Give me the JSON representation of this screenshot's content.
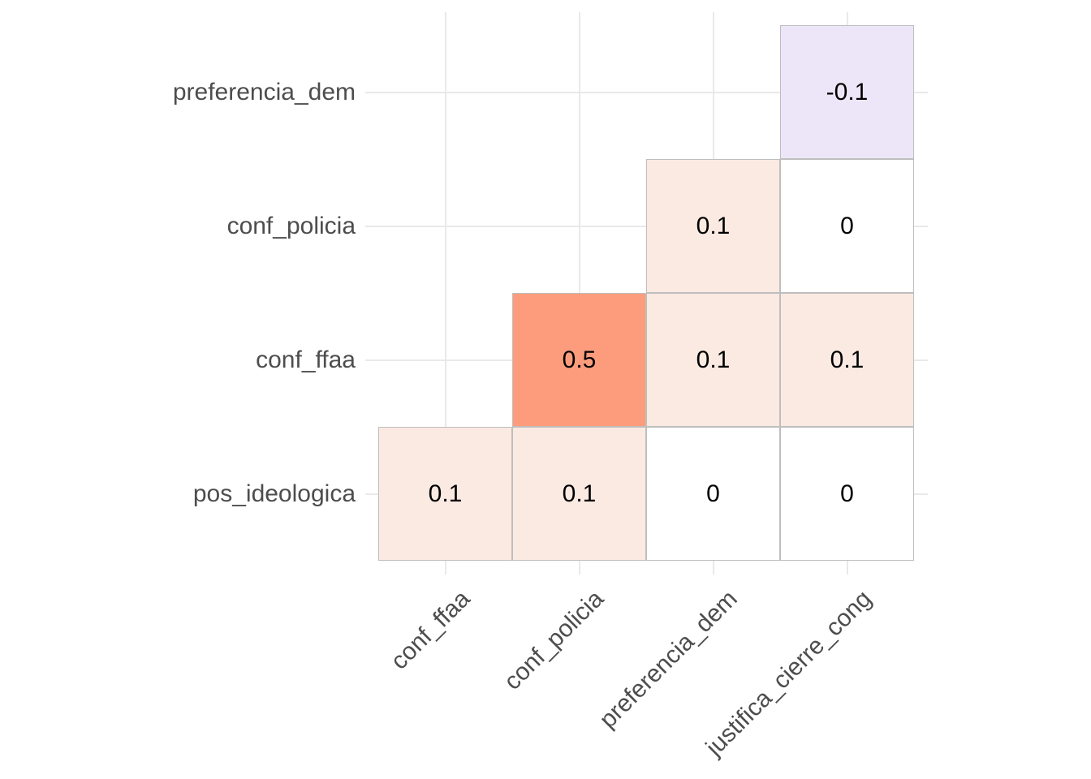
{
  "figure": {
    "background": "#ffffff",
    "axis_text_color": "#4d4d4d",
    "value_text_color": "#000000",
    "cell_border_color": "#bebebe",
    "gridline_color": "#e9e9e9"
  },
  "chart_data": {
    "type": "heatmap",
    "title": "",
    "description": "Triangular correlation matrix with correlation coefficients printed in each tile",
    "x_categories": [
      "conf_ffaa",
      "conf_policia",
      "preferencia_dem",
      "justifica_cierre_cong"
    ],
    "y_categories_top_to_bottom": [
      "preferencia_dem",
      "conf_policia",
      "conf_ffaa",
      "pos_ideologica"
    ],
    "x_tick_rotation_deg": 45,
    "grid": true,
    "legend": "none",
    "color_scale": {
      "negative_low": "#ede6f8",
      "zero": "#ffffff",
      "positive_low": "#fbeae2",
      "positive_mid": "#fc9c7d"
    },
    "cells": [
      {
        "row": "preferencia_dem",
        "col": "justifica_cierre_cong",
        "value": -0.1,
        "label": "-0.1",
        "color": "#ede6f8"
      },
      {
        "row": "conf_policia",
        "col": "preferencia_dem",
        "value": 0.1,
        "label": "0.1",
        "color": "#fbeae2"
      },
      {
        "row": "conf_policia",
        "col": "justifica_cierre_cong",
        "value": 0,
        "label": "0",
        "color": "#ffffff"
      },
      {
        "row": "conf_ffaa",
        "col": "conf_policia",
        "value": 0.5,
        "label": "0.5",
        "color": "#fc9c7d"
      },
      {
        "row": "conf_ffaa",
        "col": "preferencia_dem",
        "value": 0.1,
        "label": "0.1",
        "color": "#fbeae2"
      },
      {
        "row": "conf_ffaa",
        "col": "justifica_cierre_cong",
        "value": 0.1,
        "label": "0.1",
        "color": "#fbeae2"
      },
      {
        "row": "pos_ideologica",
        "col": "conf_ffaa",
        "value": 0.1,
        "label": "0.1",
        "color": "#fbeae2"
      },
      {
        "row": "pos_ideologica",
        "col": "conf_policia",
        "value": 0.1,
        "label": "0.1",
        "color": "#fbeae2"
      },
      {
        "row": "pos_ideologica",
        "col": "preferencia_dem",
        "value": 0,
        "label": "0",
        "color": "#ffffff"
      },
      {
        "row": "pos_ideologica",
        "col": "justifica_cierre_cong",
        "value": 0,
        "label": "0",
        "color": "#ffffff"
      }
    ]
  }
}
